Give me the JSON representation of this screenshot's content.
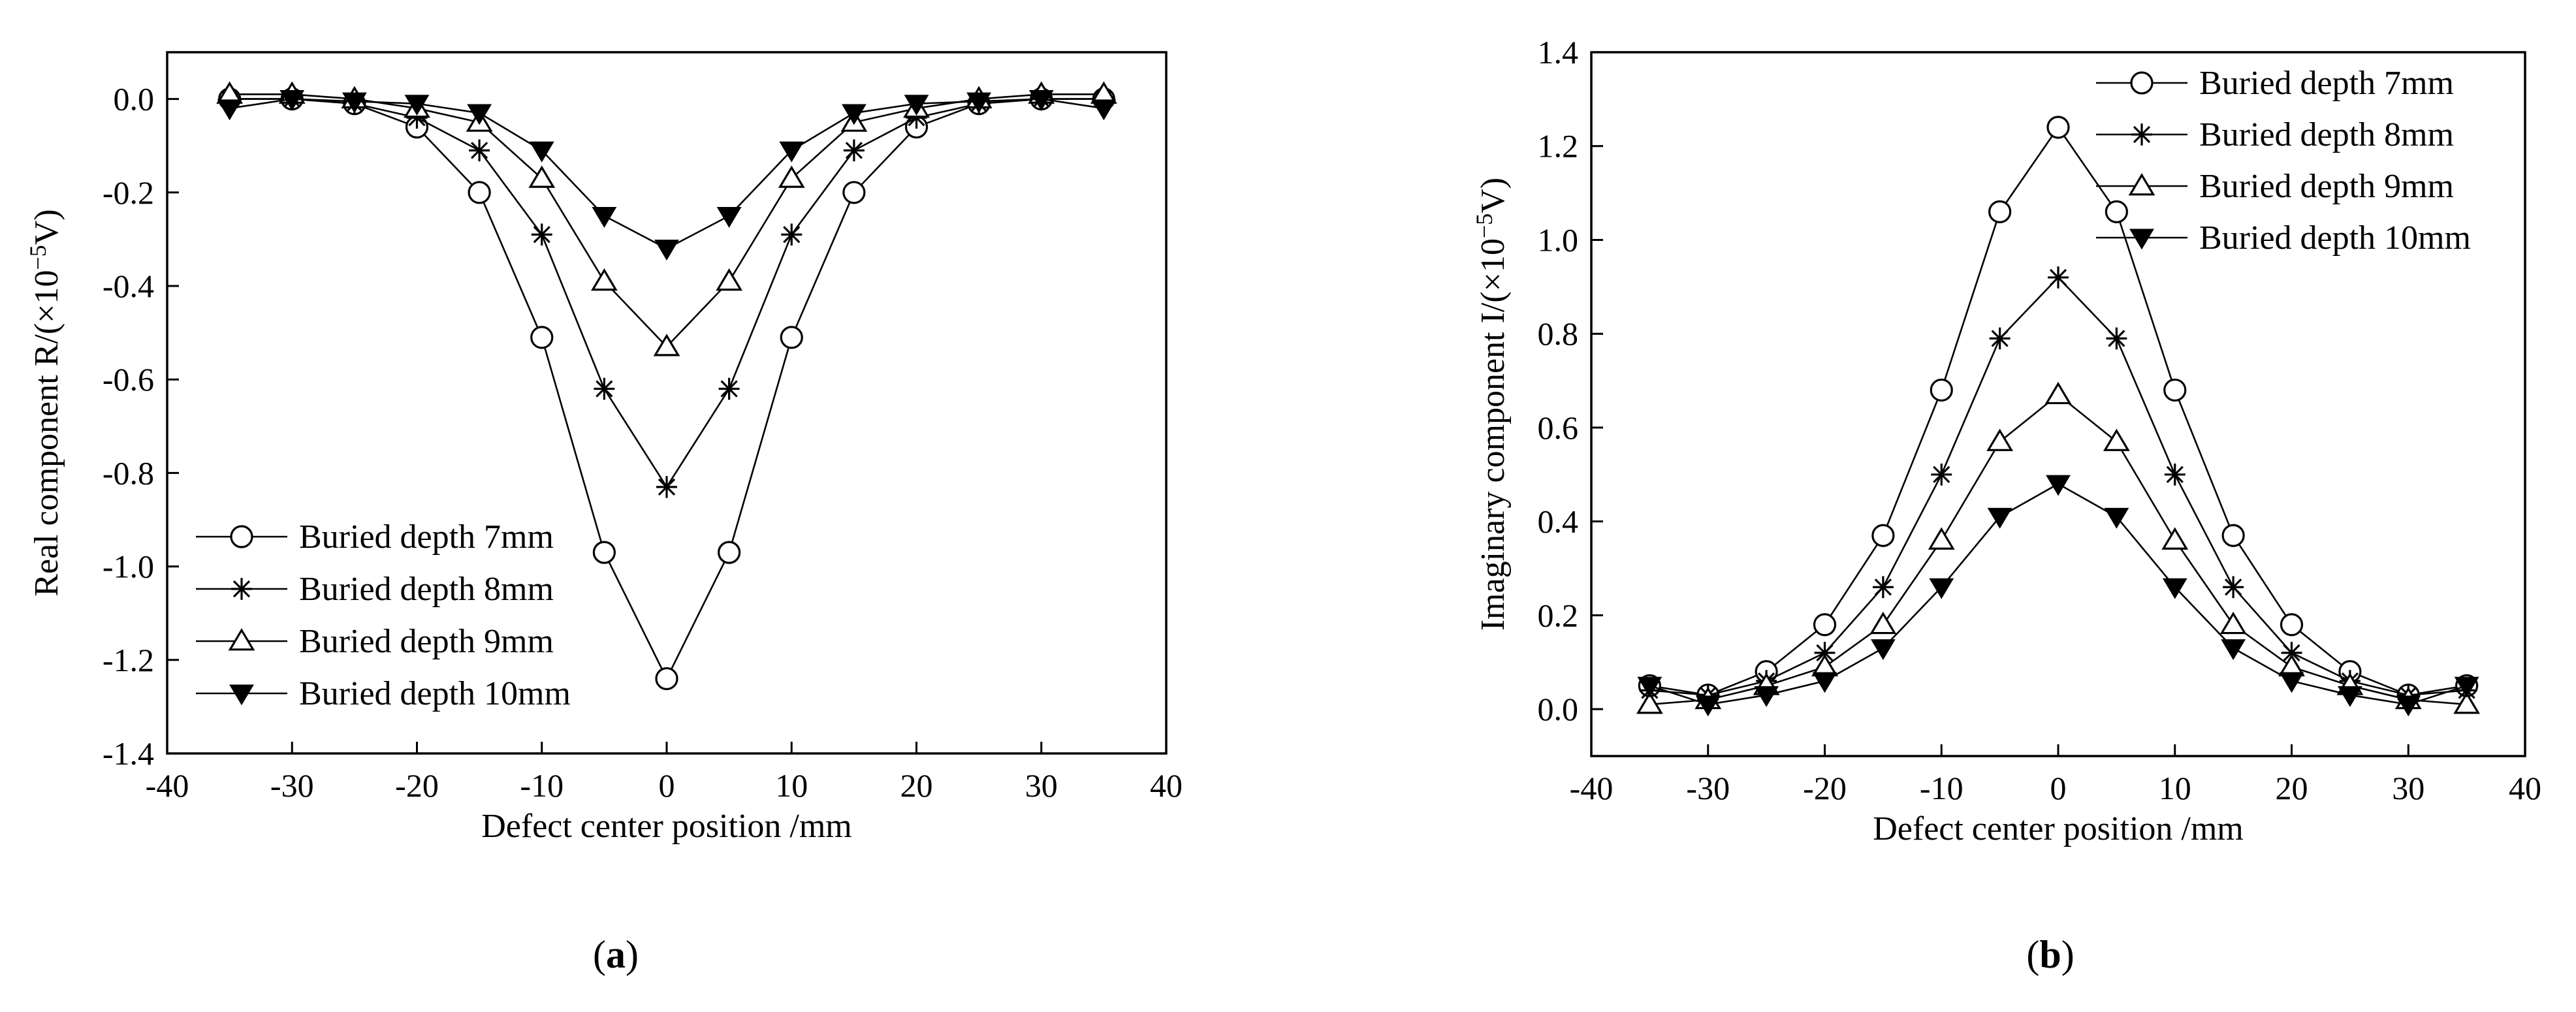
{
  "chart_data": [
    {
      "type": "line",
      "panel_label": "a",
      "xlabel": "Defect center position /mm",
      "ylabel_main": "Real component R/(×10",
      "ylabel_exp": "−5",
      "ylabel_tail": "V)",
      "xlim": [
        -40,
        40
      ],
      "ylim": [
        -1.4,
        0.1
      ],
      "xticks": [
        -40,
        -30,
        -20,
        -10,
        0,
        10,
        20,
        30,
        40
      ],
      "yticks": [
        0.0,
        -0.2,
        -0.4,
        -0.6,
        -0.8,
        -1.0,
        -1.2,
        -1.4
      ],
      "xtick_labels": [
        "-40",
        "-30",
        "-20",
        "-10",
        "0",
        "10",
        "20",
        "30",
        "40"
      ],
      "ytick_labels": [
        "0.0",
        "-0.2",
        "-0.4",
        "-0.6",
        "-0.8",
        "-1.0",
        "-1.2",
        "-1.4"
      ],
      "legend_position": "bottom-left",
      "x": [
        -35,
        -30,
        -25,
        -20,
        -15,
        -10,
        -5,
        0,
        5,
        10,
        15,
        20,
        25,
        30,
        35
      ],
      "series": [
        {
          "name": "Buried depth 7mm",
          "marker": "circle-open",
          "values": [
            0.0,
            0.0,
            -0.01,
            -0.06,
            -0.2,
            -0.51,
            -0.97,
            -1.24,
            -0.97,
            -0.51,
            -0.2,
            -0.06,
            -0.01,
            0.0,
            0.0
          ]
        },
        {
          "name": "Buried depth 8mm",
          "marker": "asterisk",
          "values": [
            0.0,
            0.0,
            -0.01,
            -0.04,
            -0.11,
            -0.29,
            -0.62,
            -0.83,
            -0.62,
            -0.29,
            -0.11,
            -0.04,
            -0.01,
            0.0,
            0.0
          ]
        },
        {
          "name": "Buried depth 9mm",
          "marker": "triangle-open",
          "values": [
            0.01,
            0.01,
            0.0,
            -0.02,
            -0.05,
            -0.17,
            -0.39,
            -0.53,
            -0.39,
            -0.17,
            -0.05,
            -0.02,
            0.0,
            0.01,
            0.01
          ]
        },
        {
          "name": "Buried depth 10mm",
          "marker": "triangle-down-filled",
          "values": [
            -0.02,
            0.0,
            -0.005,
            -0.01,
            -0.03,
            -0.11,
            -0.25,
            -0.32,
            -0.25,
            -0.11,
            -0.03,
            -0.01,
            -0.005,
            0.0,
            -0.02
          ]
        }
      ]
    },
    {
      "type": "line",
      "panel_label": "b",
      "xlabel": "Defect center position /mm",
      "ylabel_main": "Imaginary component I/(×10",
      "ylabel_exp": "−5",
      "ylabel_tail": "V)",
      "xlim": [
        -40,
        40
      ],
      "ylim": [
        -0.1,
        1.4
      ],
      "xticks": [
        -40,
        -30,
        -20,
        -10,
        0,
        10,
        20,
        30,
        40
      ],
      "yticks": [
        0.0,
        0.2,
        0.4,
        0.6,
        0.8,
        1.0,
        1.2,
        1.4
      ],
      "xtick_labels": [
        "-40",
        "-30",
        "-20",
        "-10",
        "0",
        "10",
        "20",
        "30",
        "40"
      ],
      "ytick_labels": [
        "0.0",
        "0.2",
        "0.4",
        "0.6",
        "0.8",
        "1.0",
        "1.2",
        "1.4"
      ],
      "legend_position": "top-right",
      "x": [
        -35,
        -30,
        -25,
        -20,
        -15,
        -10,
        -5,
        0,
        5,
        10,
        15,
        20,
        25,
        30,
        35
      ],
      "series": [
        {
          "name": "Buried depth 7mm",
          "marker": "circle-open",
          "values": [
            0.05,
            0.03,
            0.08,
            0.18,
            0.37,
            0.68,
            1.06,
            1.24,
            1.06,
            0.68,
            0.37,
            0.18,
            0.08,
            0.03,
            0.05
          ]
        },
        {
          "name": "Buried depth 8mm",
          "marker": "asterisk",
          "values": [
            0.04,
            0.03,
            0.06,
            0.12,
            0.26,
            0.5,
            0.79,
            0.92,
            0.79,
            0.5,
            0.26,
            0.12,
            0.06,
            0.03,
            0.04
          ]
        },
        {
          "name": "Buried depth 9mm",
          "marker": "triangle-open",
          "values": [
            0.01,
            0.02,
            0.05,
            0.09,
            0.18,
            0.36,
            0.57,
            0.67,
            0.57,
            0.36,
            0.18,
            0.09,
            0.05,
            0.02,
            0.01
          ]
        },
        {
          "name": "Buried depth 10mm",
          "marker": "triangle-down-filled",
          "values": [
            0.05,
            0.01,
            0.03,
            0.06,
            0.13,
            0.26,
            0.41,
            0.48,
            0.41,
            0.26,
            0.13,
            0.06,
            0.03,
            0.01,
            0.05
          ]
        }
      ]
    }
  ]
}
